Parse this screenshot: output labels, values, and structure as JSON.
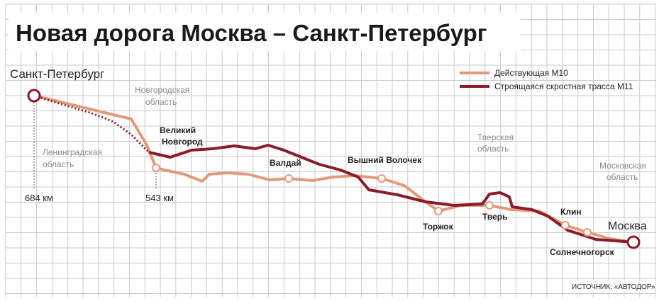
{
  "title": "Новая дорога Москва – Санкт-Петербург",
  "legend": [
    "Действующая М10",
    "Строящаяся скростная трасса М11"
  ],
  "endpoints": [
    "Санкт-Петербург",
    "Москва"
  ],
  "cities": [
    "Великий",
    "Новгород",
    "Валдай",
    "Вышний Волочек",
    "Торжок",
    "Тверь",
    "Клин",
    "Солнечногорск"
  ],
  "regions": [
    [
      "Новгородская",
      "область"
    ],
    [
      "Ленинградская",
      "область"
    ],
    [
      "Тверская",
      "область"
    ],
    [
      "Московская",
      "область"
    ]
  ],
  "distances": [
    "684 км",
    "543 км"
  ],
  "source": "ИСТОЧНИК: «АВТОДОР»"
}
